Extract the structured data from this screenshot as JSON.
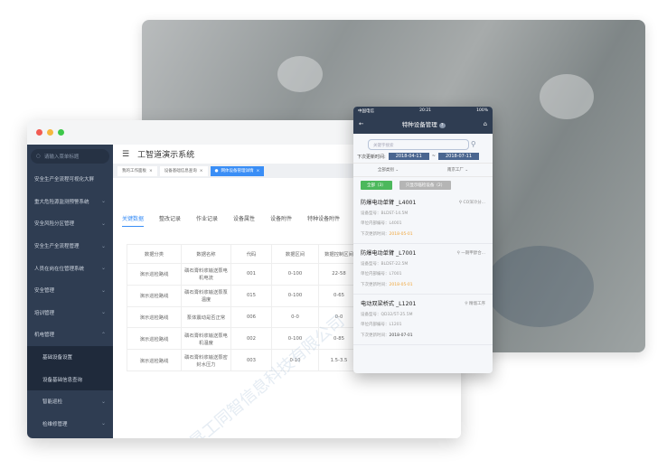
{
  "desktop": {
    "search_placeholder": "请输入菜单标题",
    "app_title": "工智道演示系统",
    "sidebar": [
      {
        "label": "安全生产全流程可视化大屏",
        "chev": ""
      },
      {
        "label": "重大危险源监测预警系统",
        "chev": "⌄"
      },
      {
        "label": "安全风险分区管理",
        "chev": "⌄"
      },
      {
        "label": "安全生产全流程管理",
        "chev": "⌄"
      },
      {
        "label": "人员在岗在位管理系统",
        "chev": "⌄"
      },
      {
        "label": "安全管理",
        "chev": "⌄"
      },
      {
        "label": "培训管理",
        "chev": "⌄"
      },
      {
        "label": "机电管理",
        "chev": "⌃"
      },
      {
        "label": "基础设备设置",
        "chev": ""
      },
      {
        "label": "设备基础信息查询",
        "chev": ""
      },
      {
        "label": "智能巡检",
        "chev": "⌄"
      },
      {
        "label": "检维修管理",
        "chev": "⌄"
      }
    ],
    "tags": [
      "我的工作面板",
      "设备基础信息查询",
      "网体设备管理详情"
    ],
    "tabs": [
      "关键数据",
      "整改记录",
      "作业记录",
      "设备属性",
      "设备附件",
      "特种设备附件"
    ],
    "table": {
      "headers": [
        "数据分类",
        "数据名称",
        "代码",
        "数据区间",
        "数据控制区间"
      ],
      "rows": [
        [
          "演示巡检路线",
          "磷石膏料浆输送泵电机电流",
          "001",
          "0-100",
          "22-58"
        ],
        [
          "演示巡检路线",
          "磷石膏料浆输送泵泵温度",
          "015",
          "0-100",
          "0-65"
        ],
        [
          "演示巡检路线",
          "泵体震动是否正常",
          "006",
          "0-0",
          "0-0"
        ],
        [
          "演示巡检路线",
          "磷石膏料浆输送泵电机温度",
          "002",
          "0-100",
          "0-85"
        ],
        [
          "演示巡检路线",
          "磷石膏料浆输送泵密封水压力",
          "003",
          "0-10",
          "1.5-3.5"
        ]
      ]
    },
    "watermark": "上海昇工同智信息科技有限公司"
  },
  "phone": {
    "carrier": "中国电信",
    "time": "20:21",
    "battery": "100%",
    "title": "特种设备管理",
    "help": "?",
    "search_placeholder": "关键字搜索",
    "date_label": "下次更新时间:",
    "date_from": "2018-04-11",
    "date_sep": "~",
    "date_to": "2018-07-11",
    "filter1": "全部类别",
    "filter2": "南京工厂",
    "chip_all": "全部（3）",
    "chip_overdue": "只显示临检设备（2）",
    "cards": [
      {
        "name": "防爆电动单臂 _L4001",
        "loc": "CO深冷分...",
        "model": "设备型号：BLDST-14.5M",
        "code": "单位内部编号：L4001",
        "next_label": "下次更新时间：",
        "next": "2018-05-01",
        "overdue": true
      },
      {
        "name": "防爆电动单臂 _L7001",
        "loc": "一期甲醇合...",
        "model": "设备型号：BLDST-22.5M",
        "code": "单位内部编号：L7001",
        "next_label": "下次更新时间：",
        "next": "2018-05-01",
        "overdue": true
      },
      {
        "name": "电动双梁桥式 _L1201",
        "loc": "精馏工序",
        "model": "设备型号：QD32/5T-25.5M",
        "code": "单位内部编号：L1201",
        "next_label": "下次更新时间：",
        "next": "2018-07-01",
        "overdue": false
      }
    ]
  },
  "colors": {
    "sidebar": "#2f3d52",
    "accent": "#3a8ef6",
    "green": "#4cb85c",
    "orange": "#f0a63c"
  }
}
